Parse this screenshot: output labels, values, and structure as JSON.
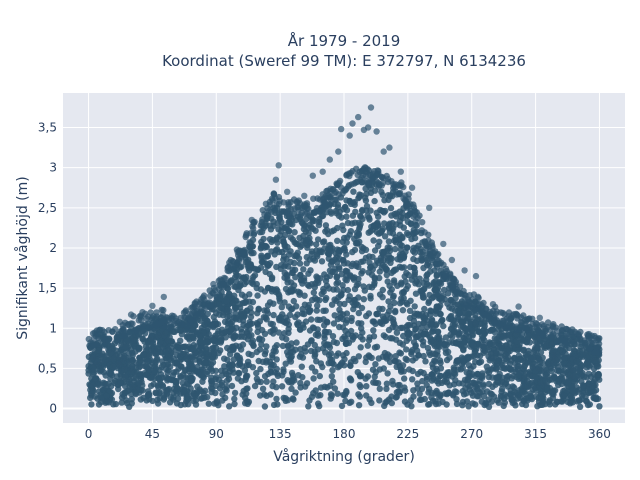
{
  "chart_data": {
    "type": "scatter",
    "title_lines": [
      "År 1979 - 2019",
      "Koordinat (Sweref 99 TM): E 372797, N 6134236"
    ],
    "xlabel": "Vågriktning (grader)",
    "ylabel": "Signifikant våghöjd (m)",
    "xlim": [
      -18,
      378
    ],
    "ylim": [
      -0.18,
      3.93
    ],
    "x_ticks": [
      0,
      45,
      90,
      135,
      180,
      225,
      270,
      315,
      360
    ],
    "x_tick_labels": [
      "0",
      "45",
      "90",
      "135",
      "180",
      "225",
      "270",
      "315",
      "360"
    ],
    "y_ticks": [
      0,
      0.5,
      1,
      1.5,
      2,
      2.5,
      3,
      3.5
    ],
    "y_tick_labels": [
      "0",
      "0,5",
      "1",
      "1,5",
      "2",
      "2,5",
      "3",
      "3,5"
    ],
    "grid": true,
    "marker_color": "#2f5670",
    "plot_bg": "#e5e8f0",
    "grid_color": "#ffffff",
    "envelope_max_height": {
      "direction": [
        0,
        10,
        20,
        30,
        40,
        50,
        60,
        70,
        80,
        90,
        100,
        110,
        120,
        130,
        140,
        150,
        160,
        170,
        180,
        190,
        200,
        210,
        220,
        230,
        240,
        250,
        260,
        270,
        280,
        290,
        300,
        310,
        320,
        330,
        340,
        350,
        360
      ],
      "height": [
        0.8,
        0.85,
        0.9,
        1.0,
        1.05,
        1.1,
        1.05,
        1.1,
        1.25,
        1.4,
        1.7,
        2.0,
        2.3,
        2.55,
        2.5,
        2.45,
        2.5,
        2.6,
        2.75,
        2.9,
        2.85,
        2.8,
        2.7,
        2.4,
        2.0,
        1.7,
        1.4,
        1.3,
        1.2,
        1.1,
        1.05,
        1.0,
        0.95,
        0.9,
        0.85,
        0.8,
        0.75
      ]
    },
    "outliers": [
      {
        "x": 4,
        "y": 0.88
      },
      {
        "x": 14,
        "y": 0.85
      },
      {
        "x": 22,
        "y": 1.08
      },
      {
        "x": 30,
        "y": 1.17
      },
      {
        "x": 38,
        "y": 1.2
      },
      {
        "x": 45,
        "y": 1.28
      },
      {
        "x": 53,
        "y": 1.39
      },
      {
        "x": 60,
        "y": 1.15
      },
      {
        "x": 75,
        "y": 1.3
      },
      {
        "x": 88,
        "y": 1.55
      },
      {
        "x": 98,
        "y": 1.75
      },
      {
        "x": 105,
        "y": 1.95
      },
      {
        "x": 115,
        "y": 2.35
      },
      {
        "x": 125,
        "y": 2.55
      },
      {
        "x": 132,
        "y": 2.85
      },
      {
        "x": 134,
        "y": 3.03
      },
      {
        "x": 140,
        "y": 2.7
      },
      {
        "x": 152,
        "y": 2.65
      },
      {
        "x": 158,
        "y": 2.9
      },
      {
        "x": 165,
        "y": 2.95
      },
      {
        "x": 170,
        "y": 3.1
      },
      {
        "x": 176,
        "y": 3.2
      },
      {
        "x": 178,
        "y": 3.48
      },
      {
        "x": 184,
        "y": 3.4
      },
      {
        "x": 186,
        "y": 3.55
      },
      {
        "x": 190,
        "y": 3.63
      },
      {
        "x": 194,
        "y": 3.47
      },
      {
        "x": 197,
        "y": 3.5
      },
      {
        "x": 199,
        "y": 3.75
      },
      {
        "x": 203,
        "y": 3.45
      },
      {
        "x": 208,
        "y": 3.2
      },
      {
        "x": 212,
        "y": 3.25
      },
      {
        "x": 220,
        "y": 2.95
      },
      {
        "x": 228,
        "y": 2.75
      },
      {
        "x": 240,
        "y": 2.5
      },
      {
        "x": 250,
        "y": 2.05
      },
      {
        "x": 256,
        "y": 1.85
      },
      {
        "x": 265,
        "y": 1.72
      },
      {
        "x": 273,
        "y": 1.65
      },
      {
        "x": 285,
        "y": 1.3
      },
      {
        "x": 296,
        "y": 1.15
      },
      {
        "x": 303,
        "y": 1.27
      },
      {
        "x": 318,
        "y": 1.13
      },
      {
        "x": 330,
        "y": 0.97
      },
      {
        "x": 338,
        "y": 0.98
      },
      {
        "x": 345,
        "y": 0.93
      },
      {
        "x": 352,
        "y": 0.9
      },
      {
        "x": 358,
        "y": 0.85
      }
    ]
  }
}
